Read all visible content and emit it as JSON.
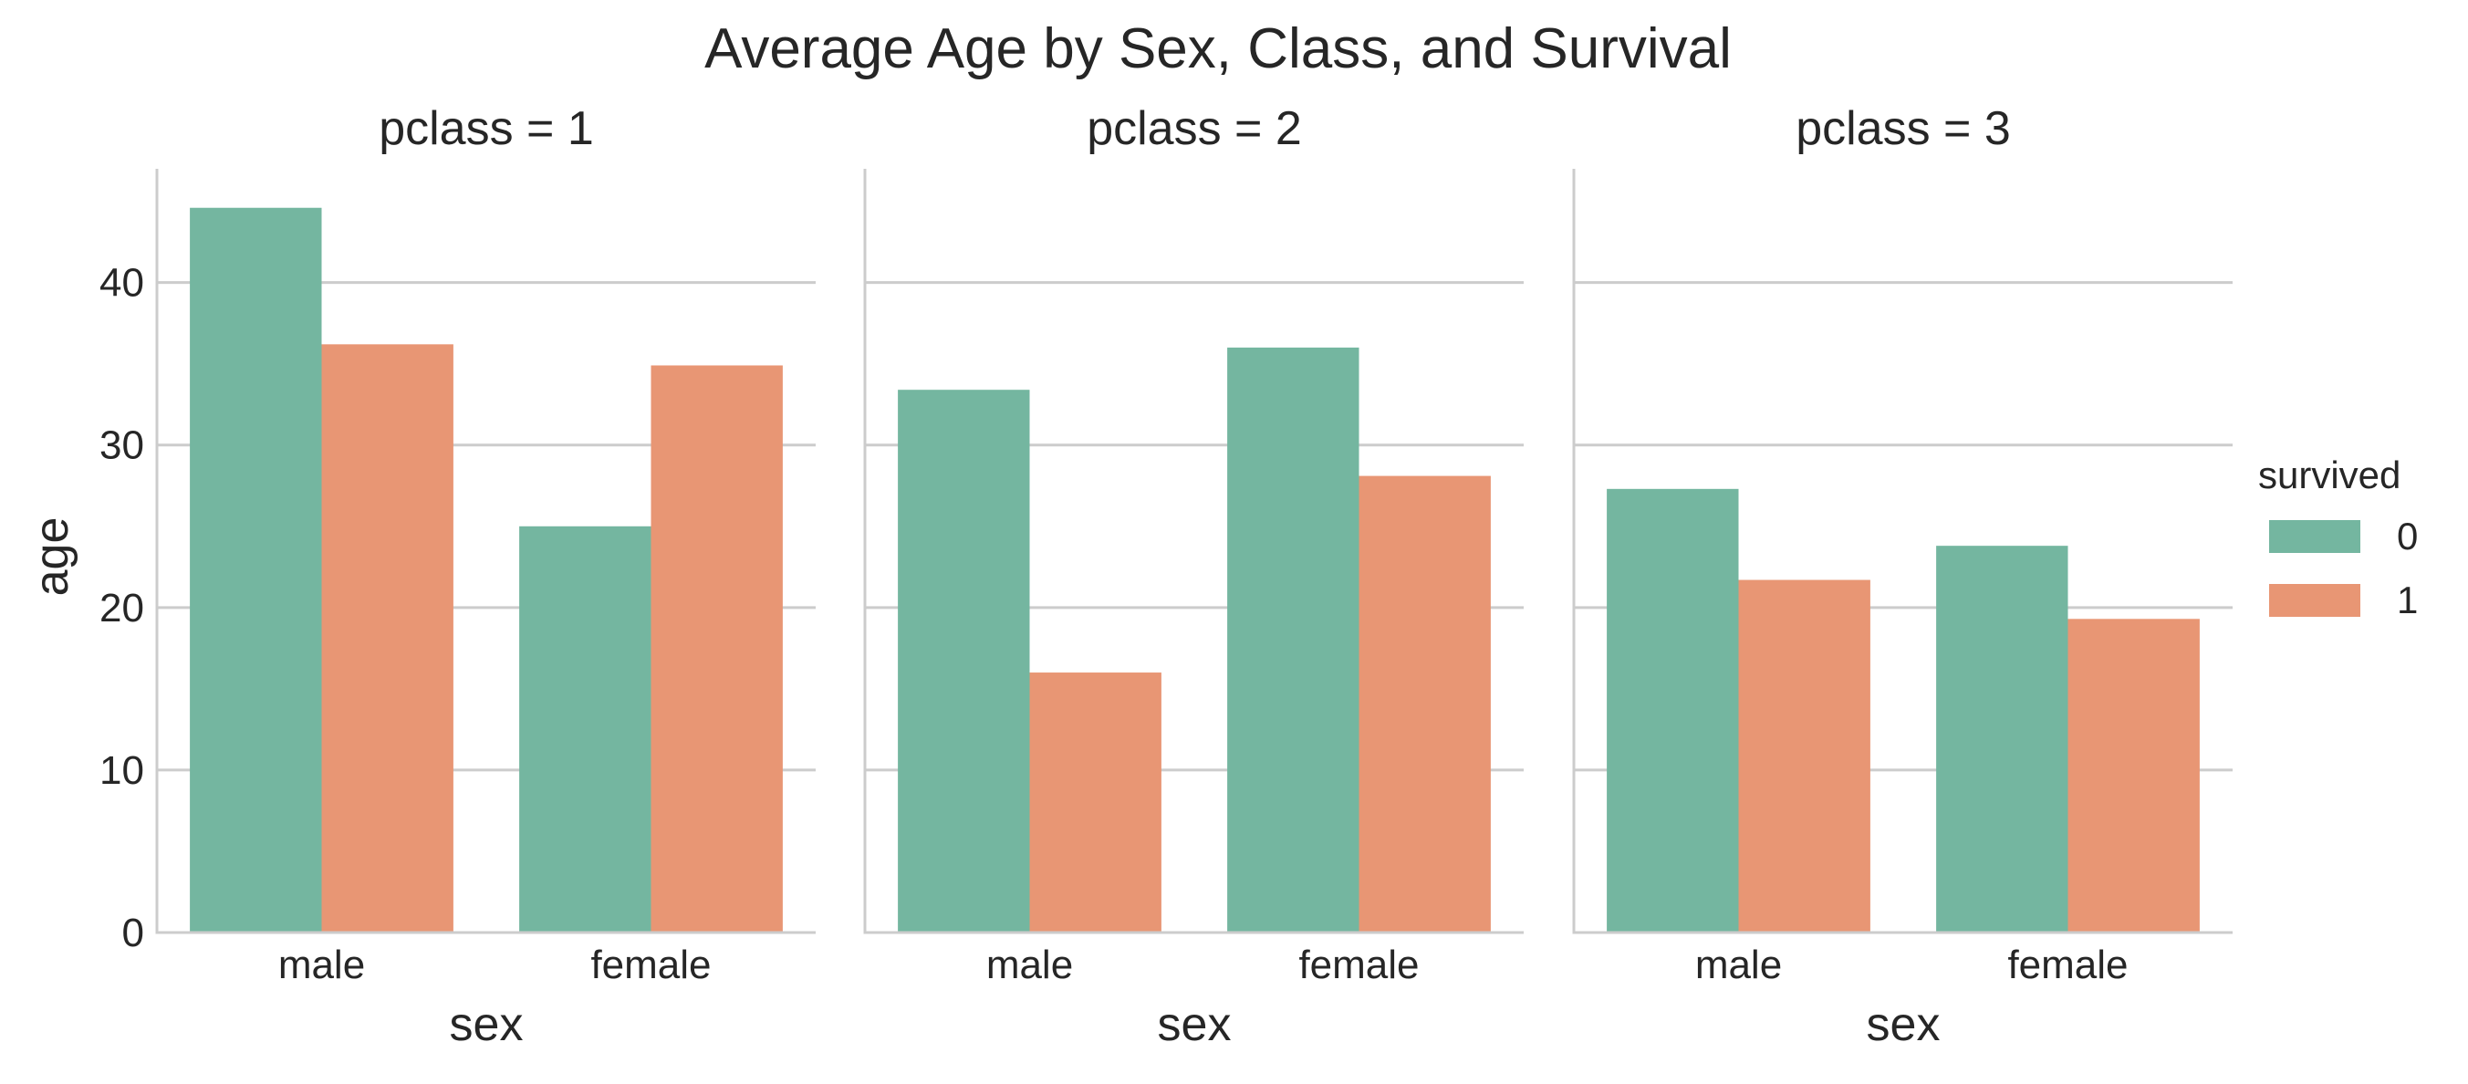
{
  "chart_data": {
    "type": "bar",
    "title": "Average Age by Sex, Class, and Survival",
    "xlabel": "sex",
    "ylabel": "age",
    "ylim": [
      0,
      47
    ],
    "yticks": [
      0,
      10,
      20,
      30,
      40
    ],
    "categories": [
      "male",
      "female"
    ],
    "grid": true,
    "legend": {
      "title": "survived",
      "placement": "right",
      "entries": [
        {
          "label": "0",
          "color": "#74b6a0"
        },
        {
          "label": "1",
          "color": "#e89674"
        }
      ]
    },
    "facets": [
      {
        "title": "pclass = 1",
        "series": [
          {
            "name": "0",
            "values": [
              44.6,
              25.0
            ]
          },
          {
            "name": "1",
            "values": [
              36.2,
              34.9
            ]
          }
        ]
      },
      {
        "title": "pclass = 2",
        "series": [
          {
            "name": "0",
            "values": [
              33.4,
              36.0
            ]
          },
          {
            "name": "1",
            "values": [
              16.0,
              28.1
            ]
          }
        ]
      },
      {
        "title": "pclass = 3",
        "series": [
          {
            "name": "0",
            "values": [
              27.3,
              23.8
            ]
          },
          {
            "name": "1",
            "values": [
              21.7,
              19.3
            ]
          }
        ]
      }
    ]
  }
}
